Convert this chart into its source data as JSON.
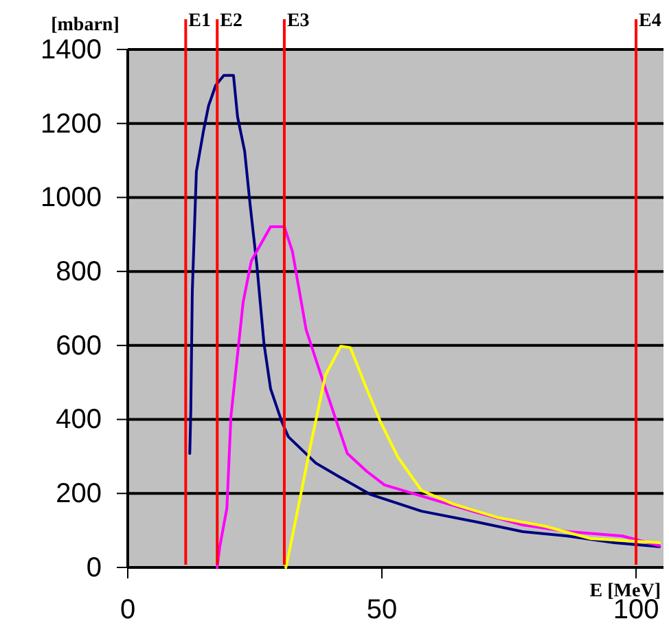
{
  "chart_data": {
    "type": "line",
    "xlabel": "E [MeV]",
    "ylabel": "[mbarn]",
    "xlim": [
      0,
      105.4
    ],
    "ylim": [
      0,
      1400
    ],
    "xticks": [
      0,
      50,
      100
    ],
    "yticks": [
      0,
      200,
      400,
      600,
      800,
      1000,
      1200,
      1400
    ],
    "grid": "y",
    "marker": "none",
    "line_style": "solid",
    "series": [
      {
        "color": "#000080",
        "x": [
          12.2,
          12.4,
          12.7,
          13.5,
          14.9,
          15.9,
          17.3,
          18.9,
          20.8,
          21.6,
          23.0,
          24.1,
          25.4,
          26.8,
          28.1,
          30.3,
          31.6,
          37.0,
          41.6,
          47.8,
          57.8,
          68.6,
          77.6,
          86.5,
          95.7,
          104.6
        ],
        "values": [
          308,
          420,
          747,
          1070,
          1180,
          1248,
          1303,
          1330,
          1330,
          1218,
          1125,
          977,
          817,
          605,
          483,
          394,
          353,
          282,
          245,
          197,
          152,
          123,
          97,
          85,
          67,
          56
        ]
      },
      {
        "color": "#ff00ff",
        "x": [
          17.6,
          18.1,
          19.5,
          20.3,
          22.7,
          24.3,
          28.1,
          30.8,
          32.4,
          35.1,
          38.9,
          43.2,
          47.0,
          50.5,
          59.5,
          68.6,
          77.6,
          86.5,
          97.3,
          104.6
        ],
        "values": [
          0,
          56,
          160,
          408,
          717,
          828,
          921,
          921,
          854,
          642,
          483,
          308,
          260,
          223,
          186,
          149,
          115,
          97,
          85,
          59
        ]
      },
      {
        "color": "#ffff00",
        "x": [
          31.1,
          31.3,
          33.5,
          36.2,
          38.9,
          41.9,
          43.8,
          47.0,
          49.7,
          53.2,
          57.8,
          64.1,
          73.0,
          82.2,
          91.1,
          104.6
        ],
        "values": [
          0,
          11,
          160,
          345,
          520,
          598,
          594,
          483,
          394,
          297,
          208,
          171,
          134,
          111,
          78,
          67
        ]
      }
    ],
    "ref_lines": [
      {
        "axis": "x",
        "value": 11.4,
        "label": "E1",
        "color": "#ff0000"
      },
      {
        "axis": "x",
        "value": 17.6,
        "label": "E2",
        "color": "#ff0000"
      },
      {
        "axis": "x",
        "value": 30.8,
        "label": "E3",
        "color": "#ff0000"
      },
      {
        "axis": "x",
        "value": 100,
        "label": "E4",
        "color": "#ff0000"
      }
    ]
  }
}
